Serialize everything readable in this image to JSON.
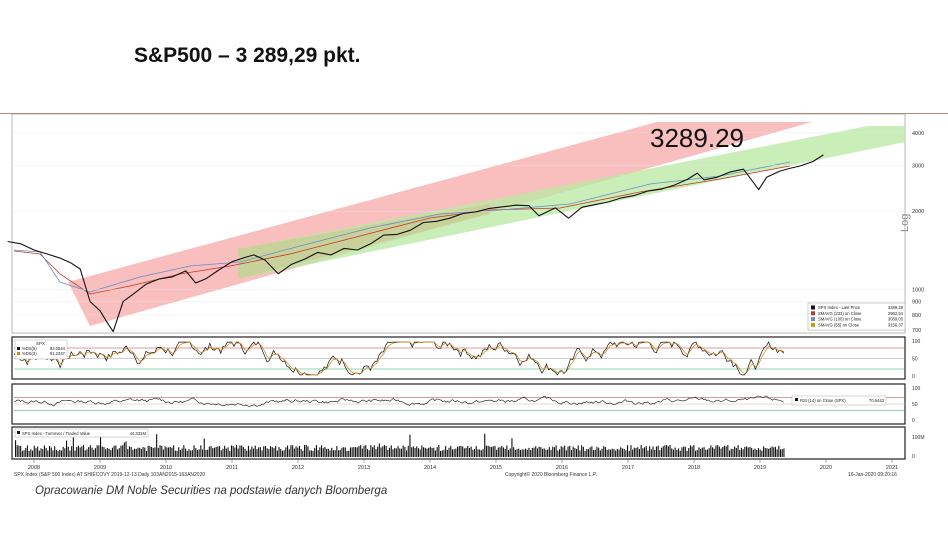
{
  "slide": {
    "title": "S&P500 – 3 289,29 pkt.",
    "caption": "Opracowanie DM Noble Securities na podstawie danych Bloomberga"
  },
  "chart_data": {
    "type": "line",
    "big_label": "3289.29",
    "y_scale": "log",
    "y_axis_label": "Log",
    "ylim": [
      700,
      4400
    ],
    "y_ticks": [
      700,
      800,
      900,
      1000,
      2000,
      3000,
      4000
    ],
    "x_ticks": [
      "2008",
      "2009",
      "2010",
      "2011",
      "2012",
      "2013",
      "2014",
      "2015",
      "2016",
      "2017",
      "2018",
      "2019",
      "2020",
      "2021"
    ],
    "price_series": {
      "x": [
        2007.6,
        2007.8,
        2008.0,
        2008.2,
        2008.4,
        2008.55,
        2008.7,
        2008.85,
        2009.0,
        2009.12,
        2009.2,
        2009.35,
        2009.5,
        2009.7,
        2009.9,
        2010.1,
        2010.3,
        2010.45,
        2010.6,
        2010.8,
        2011.0,
        2011.2,
        2011.33,
        2011.5,
        2011.7,
        2011.9,
        2012.1,
        2012.3,
        2012.5,
        2012.7,
        2012.9,
        2013.1,
        2013.3,
        2013.5,
        2013.7,
        2013.9,
        2014.1,
        2014.3,
        2014.5,
        2014.7,
        2014.9,
        2015.1,
        2015.3,
        2015.5,
        2015.65,
        2015.9,
        2016.1,
        2016.3,
        2016.5,
        2016.7,
        2016.9,
        2017.1,
        2017.3,
        2017.5,
        2017.7,
        2017.9,
        2018.05,
        2018.15,
        2018.35,
        2018.55,
        2018.75,
        2018.98,
        2019.1,
        2019.3,
        2019.45,
        2019.6,
        2019.8,
        2019.96
      ],
      "y": [
        1530,
        1500,
        1420,
        1370,
        1320,
        1270,
        1200,
        900,
        830,
        740,
        690,
        900,
        960,
        1050,
        1100,
        1120,
        1180,
        1060,
        1100,
        1190,
        1280,
        1330,
        1360,
        1300,
        1150,
        1250,
        1310,
        1390,
        1360,
        1440,
        1420,
        1500,
        1620,
        1630,
        1690,
        1810,
        1830,
        1880,
        1960,
        1990,
        2050,
        2080,
        2110,
        2100,
        1920,
        2060,
        1880,
        2070,
        2120,
        2170,
        2250,
        2300,
        2390,
        2430,
        2520,
        2650,
        2800,
        2640,
        2700,
        2830,
        2900,
        2420,
        2700,
        2850,
        2920,
        2980,
        3100,
        3289.29
      ]
    },
    "legend": [
      {
        "name": "SPX Index - Last Price",
        "value": "3289.29",
        "color": "#111111"
      },
      {
        "name": "SMAVG (233)  on Close",
        "value": "2962.54",
        "color": "#c0392b"
      },
      {
        "name": "SMAVG (100)  on Close",
        "value": "3069.03",
        "color": "#6a8cc8"
      },
      {
        "name": "SMAVG (55)  on Close",
        "value": "3156.37",
        "color": "#c0a000"
      }
    ],
    "stochastic": {
      "legend_title": "SPX",
      "legend": [
        {
          "name": "%DS(5)",
          "value": "93.0544",
          "color": "#111111"
        },
        {
          "name": "%DS(3)",
          "value": "91.2347",
          "color": "#d08010"
        }
      ],
      "ylim": [
        0,
        100
      ],
      "y_ticks": [
        0,
        50,
        100
      ]
    },
    "rsi": {
      "legend": [
        {
          "name": "RSI (14)  on Close (SPX)",
          "value": "70.6443",
          "color": "#111111"
        }
      ],
      "ylim": [
        0,
        100
      ],
      "y_ticks": [
        0,
        50,
        100
      ]
    },
    "volume": {
      "legend": [
        {
          "name": "SPX Index - Turnover / Traded Value",
          "value": "44.331M",
          "color": "#111111"
        }
      ],
      "y_ticks": [
        "0",
        "100M"
      ]
    },
    "footer_left": "SPX Index (S&P 500 Index) AT SHIECOVY  2019-12-13  Daily 103AN2015-163AN2020",
    "footer_center": "Copyright© 2020 Bloomberg Finance L.P.",
    "footer_right": "16-Jan-2020  09:20:16",
    "colors": {
      "red_channel": "#f7a8a8",
      "green_channel": "#b8e8a0",
      "price": "#111111",
      "stoch_fast": "#111111",
      "stoch_slow": "#d08010"
    }
  }
}
